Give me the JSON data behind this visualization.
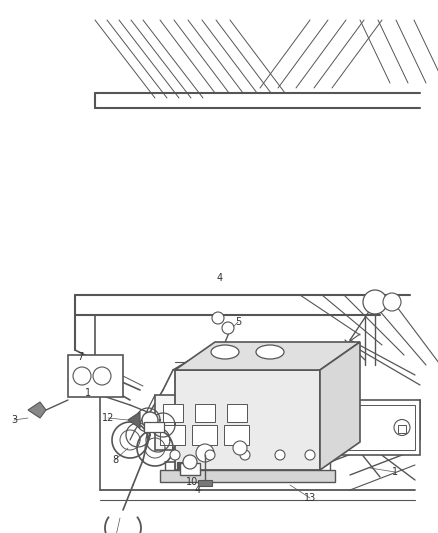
{
  "bg_color": "#ffffff",
  "lc": "#555555",
  "tc": "#333333",
  "fig_width": 4.39,
  "fig_height": 5.33,
  "dpi": 100
}
